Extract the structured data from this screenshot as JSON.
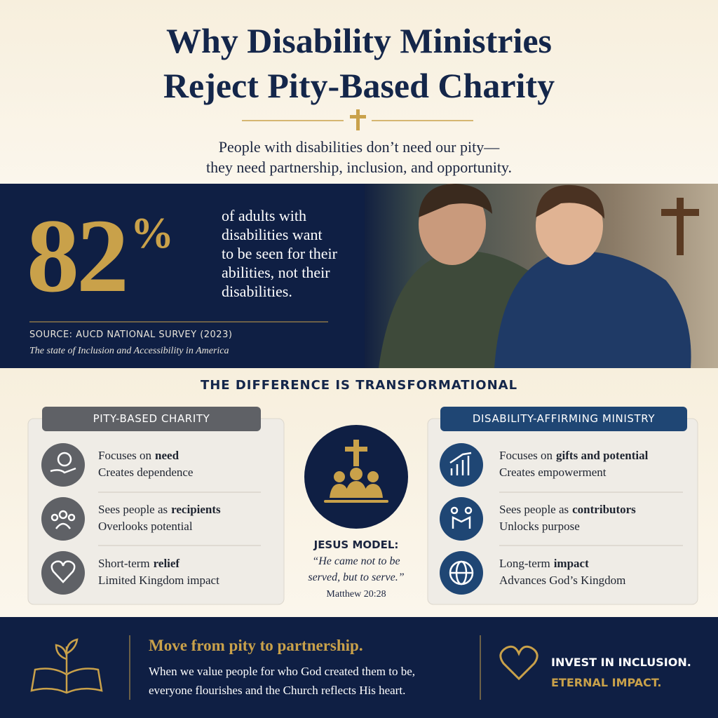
{
  "header": {
    "title": [
      "Why Disability Ministries",
      "Reject Pity-Based Charity"
    ],
    "subtitle": [
      "People with disabilities don’t need our pity—",
      "they need partnership, inclusion, and opportunity."
    ]
  },
  "stat": {
    "value": 82,
    "unit": "%",
    "text": [
      "of adults with",
      "disabilities want",
      "to be seen for their",
      "abilities, not their",
      "disabilities."
    ],
    "source": "SOURCE: AUCD NATIONAL SURVEY (2023)",
    "source_note": "The state of Inclusion and Accessibility in America"
  },
  "comparison": {
    "heading": "THE DIFFERENCE IS TRANSFORMATIONAL",
    "left": {
      "title": "PITY-BASED CHARITY",
      "rows": [
        {
          "line1": [
            "Focuses on",
            "need"
          ],
          "line2": "Creates dependence"
        },
        {
          "line1": [
            "Sees people as",
            "recipients"
          ],
          "line2": "Overlooks potential"
        },
        {
          "line1": [
            "Short-term",
            "relief"
          ],
          "line2": "Limited Kingdom impact"
        }
      ]
    },
    "center": {
      "label": "JESUS MODEL:",
      "quote": [
        "“He came not to be",
        "served, but to serve.”"
      ],
      "reference": "Matthew 20:28"
    },
    "right": {
      "title": "DISABILITY-AFFIRMING MINISTRY",
      "rows": [
        {
          "line1": [
            "Focuses on",
            "gifts and potential"
          ],
          "line2": "Creates empowerment"
        },
        {
          "line1": [
            "Sees people as",
            "contributors"
          ],
          "line2": "Unlocks purpose"
        },
        {
          "line1": [
            "Long-term",
            "impact"
          ],
          "line2": "Advances God’s Kingdom"
        }
      ]
    }
  },
  "footer": {
    "heading": "Move from pity to partnership.",
    "text": [
      "When we value people for who God created them to be,",
      "everyone flourishes and the Church reflects His heart."
    ],
    "cta": [
      "INVEST IN INCLUSION.",
      "ETERNAL IMPACT."
    ]
  }
}
